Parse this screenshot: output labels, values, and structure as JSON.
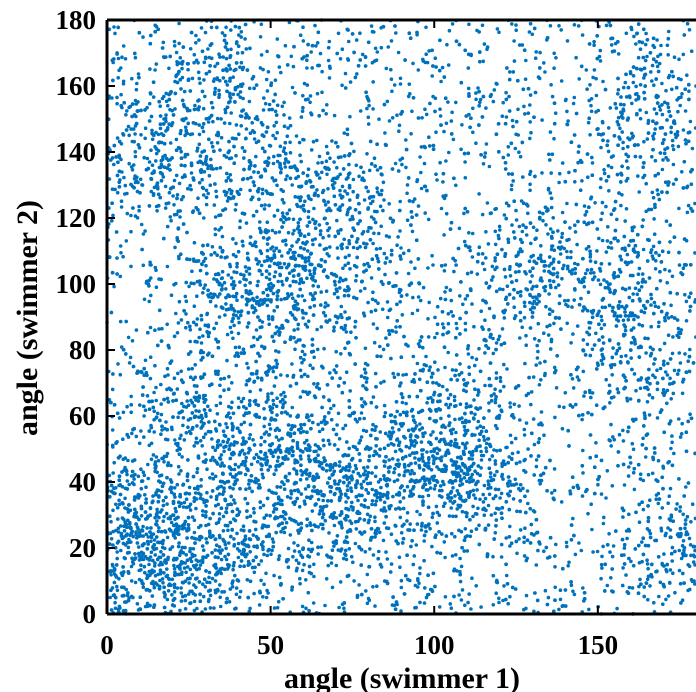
{
  "chart_data": {
    "type": "scatter",
    "xlabel": "angle (swimmer 1)",
    "ylabel": "angle (swimmer 2)",
    "xlim": [
      0,
      180
    ],
    "ylim": [
      0,
      180
    ],
    "xticks": [
      0,
      50,
      100,
      150
    ],
    "yticks": [
      0,
      20,
      40,
      60,
      80,
      100,
      120,
      140,
      160,
      180
    ],
    "grid": false,
    "legend": "none",
    "marker_color": "#0072BD",
    "point_count_estimate": 9000,
    "clusters": [
      {
        "x": 12,
        "y": 25
      },
      {
        "x": 20,
        "y": 18
      },
      {
        "x": 8,
        "y": 35
      },
      {
        "x": 30,
        "y": 10
      },
      {
        "x": 38,
        "y": 40
      },
      {
        "x": 45,
        "y": 25
      },
      {
        "x": 52,
        "y": 58
      },
      {
        "x": 58,
        "y": 46
      },
      {
        "x": 70,
        "y": 32
      },
      {
        "x": 82,
        "y": 36
      },
      {
        "x": 95,
        "y": 42
      },
      {
        "x": 106,
        "y": 46
      },
      {
        "x": 112,
        "y": 40
      },
      {
        "x": 102,
        "y": 62
      },
      {
        "x": 52,
        "y": 105
      },
      {
        "x": 40,
        "y": 95
      },
      {
        "x": 62,
        "y": 98
      },
      {
        "x": 38,
        "y": 158
      },
      {
        "x": 25,
        "y": 138
      },
      {
        "x": 10,
        "y": 140
      },
      {
        "x": 55,
        "y": 132
      },
      {
        "x": 122,
        "y": 98
      },
      {
        "x": 135,
        "y": 108
      },
      {
        "x": 165,
        "y": 152
      },
      {
        "x": 160,
        "y": 98
      },
      {
        "x": 172,
        "y": 22
      },
      {
        "x": 160,
        "y": 72
      },
      {
        "x": 5,
        "y": 10
      },
      {
        "x": 25,
        "y": 60
      },
      {
        "x": 75,
        "y": 120
      }
    ]
  }
}
